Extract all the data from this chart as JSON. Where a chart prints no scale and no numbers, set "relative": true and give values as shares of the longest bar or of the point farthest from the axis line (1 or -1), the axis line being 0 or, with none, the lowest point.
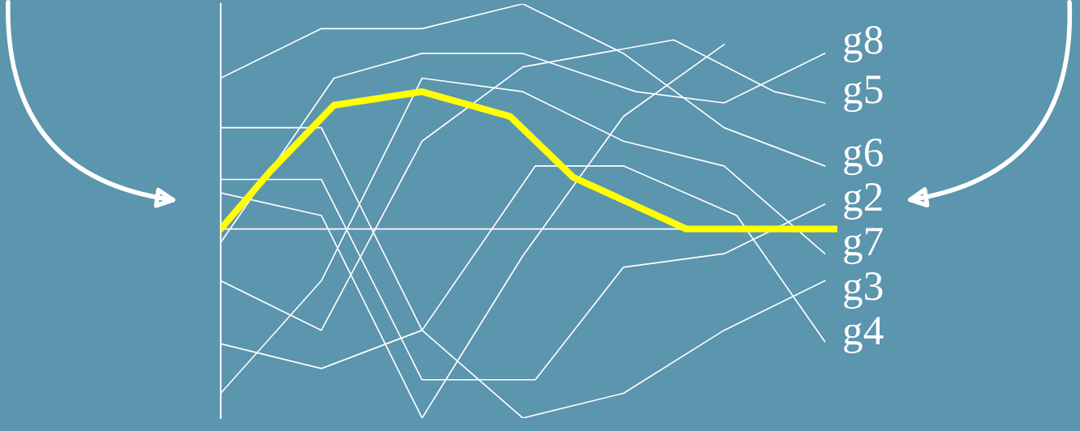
{
  "chart_data": {
    "type": "line",
    "relative": true,
    "legend": "right",
    "marker": "none",
    "line_style": "solid",
    "categories": [
      null,
      null,
      null,
      null,
      null,
      null,
      null,
      null,
      null,
      null,
      null,
      null,
      null,
      null,
      null,
      null,
      null,
      null,
      null,
      null,
      null,
      null,
      null,
      null,
      null,
      null,
      null,
      null,
      null,
      null,
      null,
      null,
      null,
      null,
      null,
      null,
      null,
      null,
      null,
      null,
      null,
      null,
      null,
      null,
      null,
      null,
      null,
      null,
      null,
      null
    ],
    "series": [
      {
        "name": "g6",
        "color": "#ffffff",
        "values": [
          0.67,
          null,
          null,
          null,
          null,
          null,
          null,
          null,
          0.89,
          null,
          null,
          null,
          null,
          null,
          null,
          null,
          0.89,
          null,
          null,
          null,
          null,
          null,
          null,
          null,
          1.0,
          null,
          null,
          null,
          null,
          null,
          null,
          null,
          0.78,
          null,
          null,
          null,
          null,
          null,
          null,
          null,
          0.45,
          null,
          null,
          null,
          null,
          null,
          null,
          null,
          0.28,
          null
        ]
      },
      {
        "name": "g8",
        "color": "#ffffff",
        "values": [
          -0.06,
          null,
          null,
          null,
          null,
          null,
          null,
          null,
          null,
          0.67,
          null,
          null,
          null,
          null,
          null,
          null,
          0.78,
          null,
          null,
          null,
          null,
          null,
          null,
          null,
          0.78,
          null,
          null,
          null,
          null,
          null,
          null,
          null,
          null,
          0.61,
          null,
          null,
          null,
          null,
          null,
          null,
          0.56,
          null,
          null,
          null,
          null,
          null,
          null,
          null,
          0.78,
          null
        ]
      },
      {
        "name": "g7",
        "color": "#ffffff",
        "values": [
          -0.73,
          null,
          null,
          null,
          null,
          null,
          null,
          null,
          -0.23,
          null,
          null,
          null,
          null,
          null,
          null,
          null,
          0.67,
          null,
          null,
          null,
          null,
          null,
          null,
          null,
          0.61,
          null,
          null,
          null,
          null,
          null,
          null,
          null,
          0.39,
          null,
          null,
          null,
          null,
          null,
          null,
          null,
          0.28,
          null,
          null,
          null,
          null,
          null,
          null,
          null,
          -0.11,
          null
        ]
      },
      {
        "name": "g5",
        "color": "#ffffff",
        "values": [
          -0.23,
          null,
          null,
          null,
          null,
          null,
          null,
          null,
          -0.45,
          null,
          null,
          null,
          null,
          null,
          null,
          null,
          0.39,
          null,
          null,
          null,
          null,
          null,
          null,
          null,
          0.72,
          null,
          null,
          null,
          null,
          null,
          null,
          null,
          null,
          null,
          null,
          null,
          0.84,
          null,
          null,
          null,
          null,
          null,
          null,
          null,
          0.61,
          null,
          null,
          null,
          0.56,
          null
        ]
      },
      {
        "name": "g3",
        "color": "#ffffff",
        "values": [
          -0.51,
          null,
          null,
          null,
          null,
          null,
          null,
          null,
          -0.62,
          null,
          null,
          null,
          null,
          null,
          null,
          null,
          -0.45,
          null,
          null,
          null,
          null,
          null,
          null,
          null,
          -0.84,
          null,
          null,
          null,
          null,
          null,
          null,
          null,
          -0.73,
          null,
          null,
          null,
          null,
          null,
          null,
          null,
          -0.45,
          null,
          null,
          null,
          null,
          null,
          null,
          null,
          -0.23,
          null
        ]
      },
      {
        "name": "g4",
        "color": "#ffffff",
        "values": [
          0.45,
          null,
          null,
          null,
          null,
          null,
          null,
          null,
          0.45,
          null,
          null,
          null,
          null,
          null,
          null,
          null,
          -0.45,
          null,
          null,
          null,
          null,
          null,
          null,
          null,
          null,
          0.28,
          null,
          null,
          null,
          null,
          null,
          null,
          0.28,
          null,
          null,
          null,
          null,
          null,
          null,
          null,
          null,
          0.06,
          null,
          null,
          null,
          null,
          null,
          null,
          -0.5,
          null
        ]
      },
      {
        "name": "g2",
        "color": "#ffffff",
        "values": [
          0.22,
          null,
          null,
          null,
          null,
          null,
          null,
          null,
          0.22,
          null,
          null,
          null,
          null,
          null,
          null,
          null,
          -0.67,
          null,
          null,
          null,
          null,
          null,
          null,
          null,
          null,
          -0.67,
          null,
          null,
          null,
          null,
          null,
          null,
          -0.17,
          null,
          null,
          null,
          null,
          null,
          null,
          null,
          -0.11,
          null,
          null,
          null,
          null,
          null,
          null,
          null,
          0.11,
          null
        ]
      },
      {
        "color": "#ffffff",
        "values": [
          0.16,
          null,
          null,
          null,
          null,
          null,
          null,
          null,
          0.06,
          null,
          null,
          null,
          null,
          null,
          null,
          null,
          -0.84,
          null,
          null,
          null,
          null,
          null,
          null,
          null,
          -0.12,
          null,
          null,
          null,
          null,
          null,
          null,
          null,
          0.5,
          null,
          null,
          null,
          null,
          null,
          null,
          null,
          0.82,
          null,
          null,
          null,
          null,
          null,
          null,
          null,
          null,
          null
        ]
      },
      {
        "color": "#ffff00",
        "values": [
          0,
          null,
          null,
          null,
          0.26,
          null,
          null,
          null,
          null,
          0.55,
          null,
          null,
          null,
          null,
          null,
          null,
          0.61,
          null,
          null,
          null,
          null,
          null,
          null,
          0.5,
          null,
          null,
          null,
          null,
          0.23,
          null,
          null,
          null,
          null,
          null,
          null,
          null,
          null,
          0,
          null,
          null,
          null,
          null,
          null,
          null,
          null,
          null,
          null,
          null,
          null,
          0
        ]
      }
    ]
  }
}
